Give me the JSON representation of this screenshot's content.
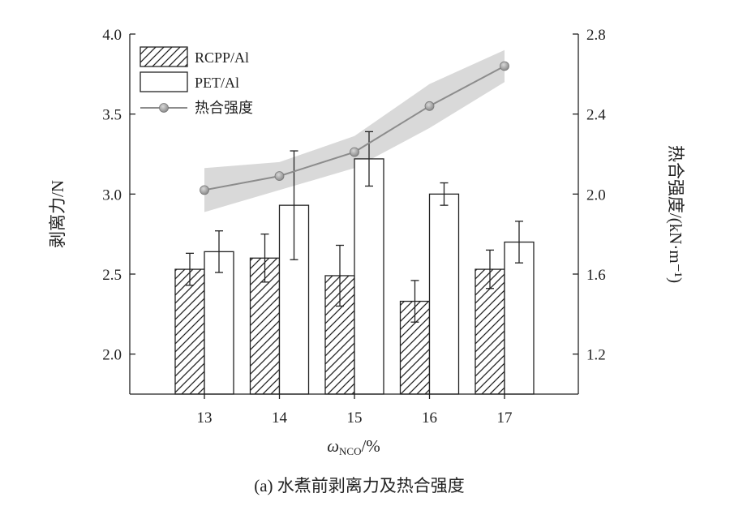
{
  "chart_data": {
    "type": "bar",
    "categories": [
      "13",
      "14",
      "15",
      "16",
      "17"
    ],
    "series": [
      {
        "name": "RCPP/Al",
        "axis": "left",
        "pattern": "hatched",
        "values": [
          2.53,
          2.6,
          2.49,
          2.33,
          2.53
        ],
        "errors": [
          0.1,
          0.15,
          0.19,
          0.13,
          0.12
        ]
      },
      {
        "name": "PET/Al",
        "axis": "left",
        "pattern": "hollow",
        "values": [
          2.64,
          2.93,
          3.22,
          3.0,
          2.7
        ],
        "errors": [
          0.13,
          0.34,
          0.17,
          0.07,
          0.13
        ]
      },
      {
        "name": "热合强度",
        "axis": "right",
        "type": "line",
        "values": [
          2.02,
          2.09,
          2.21,
          2.44,
          2.64
        ],
        "band_upper": [
          2.13,
          2.16,
          2.29,
          2.55,
          2.72
        ],
        "band_lower": [
          1.91,
          2.02,
          2.13,
          2.33,
          2.56
        ]
      }
    ],
    "xlabel_main": "ω",
    "xlabel_sub": "NCO",
    "xlabel_unit": "/%",
    "ylabel_left": "剥离力/N",
    "ylabel_right": "热合强度/(kN·m⁻¹)",
    "ylim_left": [
      1.75,
      4.0
    ],
    "ylim_right": [
      1.0,
      2.8
    ],
    "yticks_left": [
      "2.0",
      "2.5",
      "3.0",
      "3.5",
      "4.0"
    ],
    "yticks_right": [
      "1.2",
      "1.6",
      "2.0",
      "2.4",
      "2.8"
    ],
    "legend_position": "top-left",
    "grid": false,
    "caption": "(a) 水煮前剥离力及热合强度",
    "colors": {
      "line": "#8c8c8c",
      "marker": "#9a9a9a",
      "band": "#d9d9d9",
      "axis": "#222222"
    }
  }
}
